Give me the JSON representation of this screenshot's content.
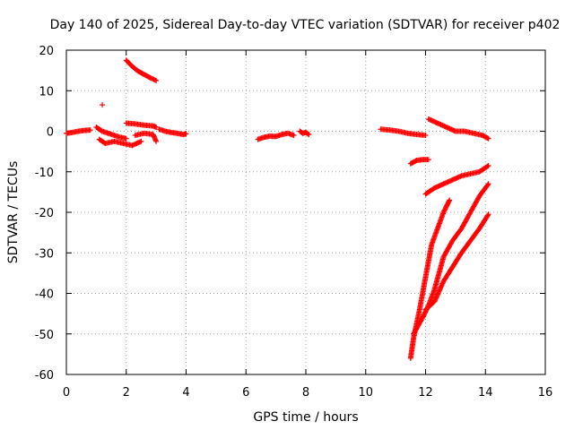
{
  "chart_data": {
    "type": "scatter",
    "title": "Day 140 of 2025, Sidereal Day-to-day VTEC variation (SDTVAR) for receiver p402",
    "xlabel": "GPS time / hours",
    "ylabel": "SDTVAR / TECUs",
    "xlim": [
      0,
      16
    ],
    "ylim": [
      -60,
      20
    ],
    "xticks": [
      "0",
      "2",
      "4",
      "6",
      "8",
      "10",
      "12",
      "14",
      "16"
    ],
    "yticks": [
      "20",
      "10",
      "0",
      "-10",
      "-20",
      "-30",
      "-40",
      "-50",
      "-60"
    ],
    "grid": true,
    "marker": "+",
    "color": "#ff0000",
    "series": [
      {
        "x": [
          0.0,
          0.2,
          0.4,
          0.6,
          0.8
        ],
        "y": [
          -0.5,
          -0.3,
          0.0,
          0.2,
          0.3
        ]
      },
      {
        "x": [
          1.0,
          1.2,
          1.4,
          1.6,
          1.8,
          2.0
        ],
        "y": [
          1.0,
          0.0,
          -0.5,
          -1.0,
          -1.5,
          -1.8
        ]
      },
      {
        "x": [
          1.1,
          1.3,
          1.6,
          1.9,
          2.2,
          2.5
        ],
        "y": [
          -2.0,
          -3.0,
          -2.5,
          -3.0,
          -3.5,
          -2.5
        ]
      },
      {
        "x": [
          1.2
        ],
        "y": [
          6.5
        ]
      },
      {
        "x": [
          2.0,
          2.2,
          2.4,
          2.6,
          2.8,
          3.0
        ],
        "y": [
          17.5,
          16.0,
          14.8,
          14.0,
          13.2,
          12.5
        ]
      },
      {
        "x": [
          2.0,
          2.3,
          2.6,
          2.9,
          3.0
        ],
        "y": [
          2.0,
          1.8,
          1.5,
          1.3,
          1.0
        ]
      },
      {
        "x": [
          2.3,
          2.6,
          2.9,
          3.0
        ],
        "y": [
          -1.0,
          -0.5,
          -0.8,
          -2.5
        ]
      },
      {
        "x": [
          3.1,
          3.3,
          3.5,
          3.7,
          3.9,
          4.0
        ],
        "y": [
          0.5,
          0.0,
          -0.3,
          -0.5,
          -0.8,
          -0.6
        ]
      },
      {
        "x": [
          6.4,
          6.6,
          6.8,
          7.0,
          7.2,
          7.4,
          7.6
        ],
        "y": [
          -2.0,
          -1.5,
          -1.2,
          -1.3,
          -0.8,
          -0.5,
          -1.0
        ]
      },
      {
        "x": [
          7.8,
          7.9,
          8.0,
          8.1
        ],
        "y": [
          0.0,
          -0.5,
          -0.3,
          -0.8
        ]
      },
      {
        "x": [
          10.5,
          10.8,
          11.1,
          11.4,
          11.7,
          12.0
        ],
        "y": [
          0.5,
          0.3,
          0.0,
          -0.5,
          -0.8,
          -1.0
        ]
      },
      {
        "x": [
          12.1,
          12.4,
          12.7,
          13.0,
          13.3,
          13.6,
          13.9,
          14.1
        ],
        "y": [
          3.0,
          2.0,
          1.0,
          0.0,
          0.0,
          -0.5,
          -1.0,
          -1.8
        ]
      },
      {
        "x": [
          11.5,
          11.7,
          11.9,
          12.1
        ],
        "y": [
          -8.0,
          -7.2,
          -7.0,
          -7.0
        ]
      },
      {
        "x": [
          12.0,
          12.3,
          12.6,
          12.9,
          13.2,
          13.5,
          13.8,
          14.1
        ],
        "y": [
          -15.5,
          -14.0,
          -13.0,
          -12.0,
          -11.0,
          -10.5,
          -10.0,
          -8.5
        ]
      },
      {
        "x": [
          11.5,
          11.6,
          11.8,
          12.0,
          12.2,
          12.4,
          12.6,
          12.8
        ],
        "y": [
          -56.0,
          -51.0,
          -44.0,
          -36.0,
          -28.0,
          -24.0,
          -20.0,
          -17.0
        ]
      },
      {
        "x": [
          11.6,
          11.9,
          12.1,
          12.3,
          12.6,
          12.9,
          13.2,
          13.5,
          13.8,
          14.1
        ],
        "y": [
          -50.0,
          -46.0,
          -43.0,
          -39.0,
          -31.0,
          -27.0,
          -24.0,
          -20.0,
          -16.0,
          -13.0
        ]
      },
      {
        "x": [
          12.0,
          12.3,
          12.6,
          12.9,
          13.2,
          13.5,
          13.8,
          14.1
        ],
        "y": [
          -44.0,
          -42.0,
          -37.0,
          -33.5,
          -30.0,
          -27.0,
          -24.0,
          -20.5
        ]
      }
    ]
  }
}
